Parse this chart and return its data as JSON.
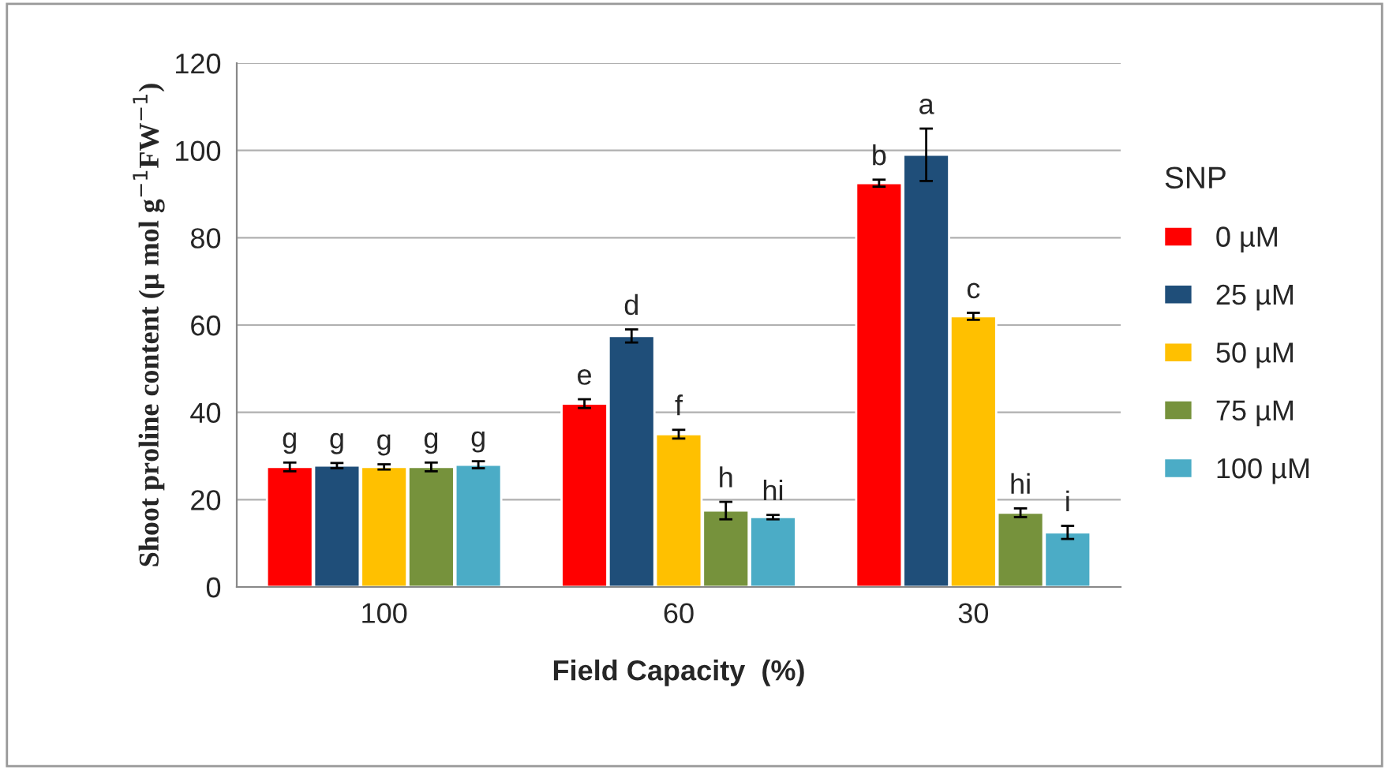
{
  "chart_data": {
    "type": "bar",
    "xlabel": "Field Capacity  (%)",
    "ylabel": "Shoot proline content (µ mol g$^{−1}$FW$^{−1}$)",
    "legend_title": "SNP",
    "categories": [
      "100",
      "60",
      "30"
    ],
    "series": [
      {
        "name": "0 µM",
        "color": "#ff0000",
        "values": [
          27.5,
          42,
          92.5
        ],
        "errors": [
          1,
          1,
          0.8
        ]
      },
      {
        "name": "25 µM",
        "color": "#1f4e79",
        "values": [
          27.8,
          57.5,
          99
        ],
        "errors": [
          0.6,
          1.5,
          6
        ]
      },
      {
        "name": "50 µM",
        "color": "#ffc000",
        "values": [
          27.5,
          35,
          62
        ],
        "errors": [
          0.6,
          1,
          0.8
        ]
      },
      {
        "name": "75 µM",
        "color": "#76923c",
        "values": [
          27.5,
          17.5,
          17
        ],
        "errors": [
          1,
          2,
          1
        ]
      },
      {
        "name": "100 µM",
        "color": "#4bacc6",
        "values": [
          28,
          16,
          12.5
        ],
        "errors": [
          0.8,
          0.5,
          1.5
        ]
      }
    ],
    "ylim": [
      0,
      120
    ],
    "yticks": [
      0,
      20,
      40,
      60,
      80,
      100,
      120
    ],
    "grid": "y",
    "legend": "right",
    "annotations": [
      "g",
      "g",
      "g",
      "g",
      "g",
      "e",
      "d",
      "f",
      "h",
      "hi",
      "b",
      "a",
      "c",
      "hi",
      "i"
    ]
  }
}
